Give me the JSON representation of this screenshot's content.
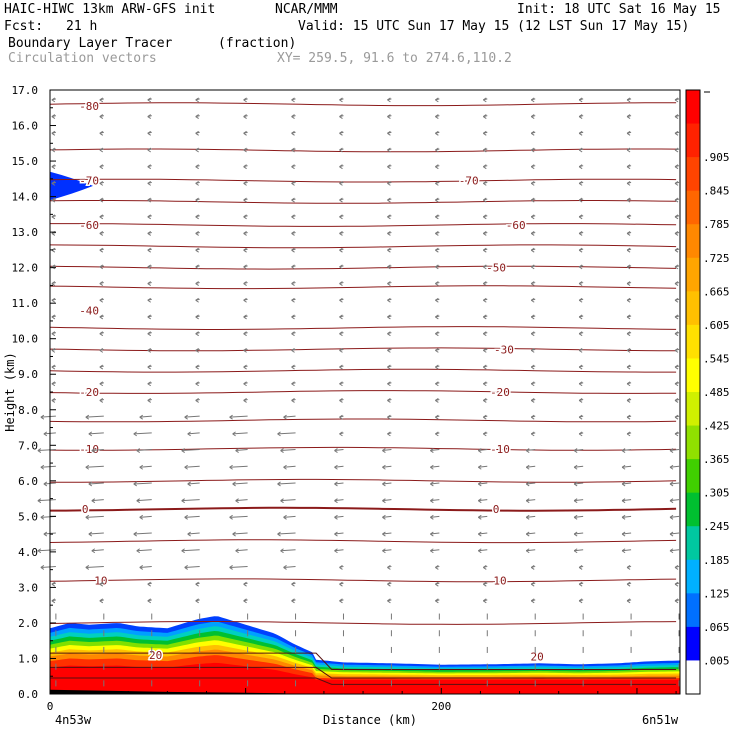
{
  "header": {
    "model": "HAIC-HIWC 13km ARW-GFS init",
    "org": "NCAR/MMM",
    "init": "Init: 18 UTC Sat 16 May 15",
    "fcst_label": "Fcst:",
    "fcst_value": "21 h",
    "valid": "Valid: 15 UTC Sun 17 May 15 (12 LST Sun 17 May 15)",
    "field": "Boundary Layer Tracer",
    "units": "(fraction)",
    "vectors": "Circulation vectors",
    "xy": "XY= 259.5, 91.6 to 274.6,110.2"
  },
  "colors": {
    "isotherm": "#8b1a1a",
    "vector": "#777777",
    "frame": "#000000"
  },
  "chart_data": {
    "type": "heatmap",
    "title": "Boundary Layer Tracer",
    "units": "(fraction)",
    "xlabel": "Distance (km)",
    "ylabel": "Height (km)",
    "x_range": [
      0,
      322
    ],
    "y_range": [
      0,
      17
    ],
    "x_ticks": [
      0,
      200
    ],
    "x_tick_labels": [
      "0",
      "200"
    ],
    "x_end_labels": [
      "4n53w",
      "6n51w"
    ],
    "y_ticks": [
      0,
      1,
      2,
      3,
      4,
      5,
      6,
      7,
      8,
      9,
      10,
      11,
      12,
      13,
      14,
      15,
      16,
      17
    ],
    "y_tick_labels": [
      "0.0",
      "1.0",
      "2.0",
      "3.0",
      "4.0",
      "5.0",
      "6.0",
      "7.0",
      "8.0",
      "9.0",
      "10.0",
      "11.0",
      "12.0",
      "13.0",
      "14.0",
      "15.0",
      "16.0",
      "17.0"
    ],
    "colorbar_labels": [
      ".905",
      ".845",
      ".785",
      ".725",
      ".665",
      ".605",
      ".545",
      ".485",
      ".425",
      ".365",
      ".305",
      ".245",
      ".185",
      ".125",
      ".065",
      ".005"
    ],
    "colorbar_colors": [
      "#ff0000",
      "#ff2200",
      "#ff4400",
      "#ff6600",
      "#ff8800",
      "#ffa500",
      "#ffc000",
      "#ffe000",
      "#ffff00",
      "#d0f000",
      "#90e000",
      "#40d000",
      "#00c030",
      "#00c8a0",
      "#00b0ff",
      "#0070ff",
      "#0000ff",
      "#ffffff"
    ],
    "isotherm_labels": [
      {
        "value": "-80",
        "x": 20,
        "y": 16.55
      },
      {
        "value": "-70",
        "x": 20,
        "y": 14.45
      },
      {
        "value": "-70",
        "x": 214,
        "y": 14.45
      },
      {
        "value": "-60",
        "x": 20,
        "y": 13.2
      },
      {
        "value": "-60",
        "x": 238,
        "y": 13.2
      },
      {
        "value": "-50",
        "x": 228,
        "y": 12.0
      },
      {
        "value": "-40",
        "x": 20,
        "y": 10.8
      },
      {
        "value": "-30",
        "x": 232,
        "y": 9.7
      },
      {
        "value": "-20",
        "x": 20,
        "y": 8.5
      },
      {
        "value": "-20",
        "x": 230,
        "y": 8.5
      },
      {
        "value": "-10",
        "x": 20,
        "y": 6.9
      },
      {
        "value": "-10",
        "x": 230,
        "y": 6.9
      },
      {
        "value": "0",
        "x": 18,
        "y": 5.2
      },
      {
        "value": "0",
        "x": 228,
        "y": 5.2
      },
      {
        "value": "10",
        "x": 26,
        "y": 3.2
      },
      {
        "value": "10",
        "x": 230,
        "y": 3.2
      },
      {
        "value": "20",
        "x": 249,
        "y": 1.05
      },
      {
        "value": "20",
        "x": 54,
        "y": 1.1
      }
    ],
    "isotherm_levels_km": [
      16.6,
      15.3,
      14.45,
      13.85,
      13.2,
      12.6,
      12.0,
      11.45,
      10.3,
      9.7,
      9.1,
      8.5,
      7.7,
      6.9,
      6.0,
      5.2,
      4.3,
      3.2,
      2.0
    ],
    "tracer_top_km": [
      [
        0,
        1.85
      ],
      [
        10,
        2.0
      ],
      [
        20,
        1.95
      ],
      [
        35,
        2.0
      ],
      [
        45,
        1.9
      ],
      [
        60,
        1.85
      ],
      [
        75,
        2.1
      ],
      [
        85,
        2.2
      ],
      [
        100,
        1.95
      ],
      [
        115,
        1.7
      ],
      [
        125,
        1.4
      ],
      [
        135,
        1.15
      ],
      [
        150,
        1.0
      ],
      [
        175,
        0.95
      ],
      [
        200,
        0.88
      ],
      [
        225,
        0.9
      ],
      [
        250,
        0.95
      ],
      [
        270,
        0.9
      ],
      [
        290,
        0.95
      ],
      [
        305,
        1.05
      ],
      [
        322,
        1.1
      ]
    ],
    "blob_upper_left": {
      "x_end": 22,
      "y_center": 14.3,
      "half_thickness": 0.4
    }
  }
}
